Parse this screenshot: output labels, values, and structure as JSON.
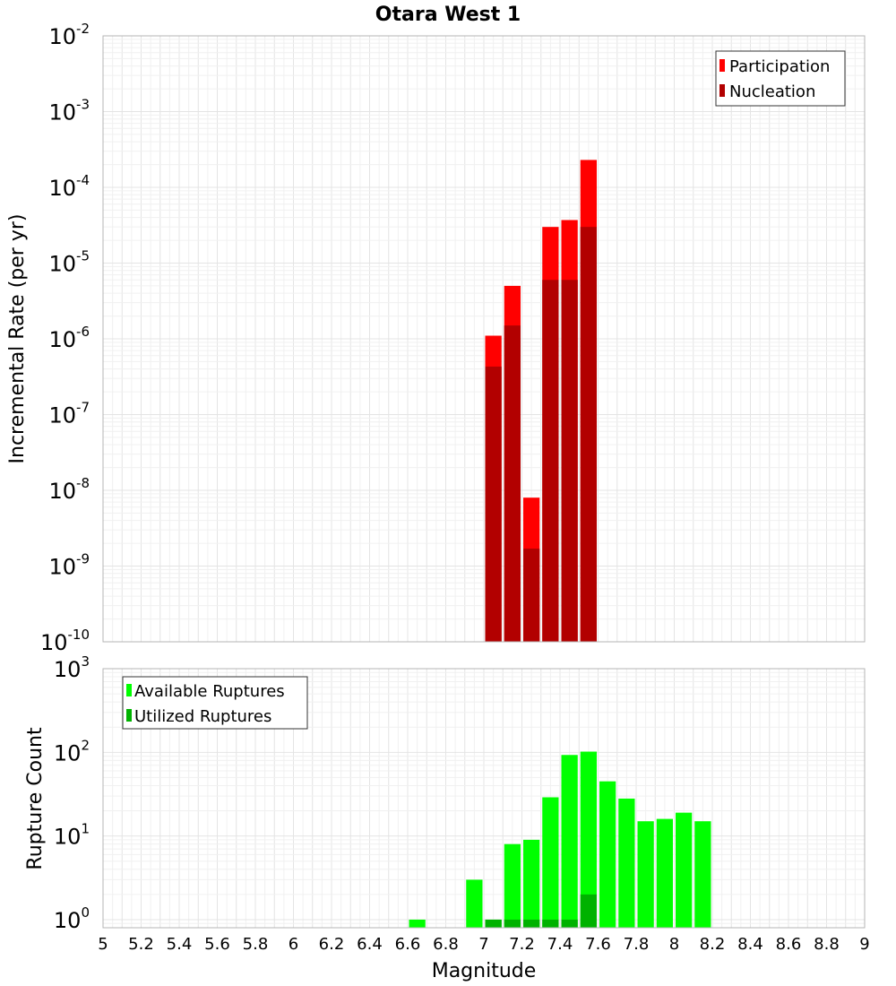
{
  "title": "Otara West 1",
  "colors": {
    "participation": "#ff0000",
    "nucleation": "#b20000",
    "available": "#00ff00",
    "utilized": "#00b200"
  },
  "chart_data": [
    {
      "type": "bar",
      "scale": "log",
      "ylabel": "Incremental Rate (per yr)",
      "ylim": [
        1e-10,
        0.01
      ],
      "xlim": [
        5,
        9
      ],
      "grid": true,
      "legend_position": "top-right",
      "yticks": [
        {
          "base": "10",
          "exp": "-10"
        },
        {
          "base": "10",
          "exp": "-9"
        },
        {
          "base": "10",
          "exp": "-8"
        },
        {
          "base": "10",
          "exp": "-7"
        },
        {
          "base": "10",
          "exp": "-6"
        },
        {
          "base": "10",
          "exp": "-5"
        },
        {
          "base": "10",
          "exp": "-4"
        },
        {
          "base": "10",
          "exp": "-3"
        },
        {
          "base": "10",
          "exp": "-2"
        }
      ],
      "series": [
        {
          "name": "Participation",
          "color": "#ff0000",
          "x": [
            7.05,
            7.15,
            7.25,
            7.35,
            7.45,
            7.55
          ],
          "values": [
            1.1e-06,
            5e-06,
            8e-09,
            3e-05,
            3.7e-05,
            0.00023
          ]
        },
        {
          "name": "Nucleation",
          "color": "#b20000",
          "x": [
            7.05,
            7.15,
            7.25,
            7.35,
            7.45,
            7.55
          ],
          "values": [
            4.3e-07,
            1.5e-06,
            1.7e-09,
            6e-06,
            6e-06,
            3e-05
          ]
        }
      ]
    },
    {
      "type": "bar",
      "scale": "log",
      "ylabel": "Rupture Count",
      "xlabel": "Magnitude",
      "ylim": [
        0.8,
        1000
      ],
      "xlim": [
        5,
        9
      ],
      "grid": true,
      "legend_position": "top-left",
      "yticks": [
        {
          "base": "10",
          "exp": "0",
          "value": 1
        },
        {
          "base": "10",
          "exp": "1",
          "value": 10
        },
        {
          "base": "10",
          "exp": "2",
          "value": 100
        },
        {
          "base": "10",
          "exp": "3",
          "value": 1000
        }
      ],
      "xticks": [
        "5",
        "5.2",
        "5.4",
        "5.6",
        "5.8",
        "6",
        "6.2",
        "6.4",
        "6.6",
        "6.8",
        "7",
        "7.2",
        "7.4",
        "7.6",
        "7.8",
        "8",
        "8.2",
        "8.4",
        "8.6",
        "8.8",
        "9"
      ],
      "series": [
        {
          "name": "Available Ruptures",
          "color": "#00ff00",
          "x": [
            6.65,
            6.95,
            7.05,
            7.15,
            7.25,
            7.35,
            7.45,
            7.55,
            7.65,
            7.75,
            7.85,
            7.95,
            8.05,
            8.15
          ],
          "values": [
            1,
            3,
            1,
            8,
            9,
            29,
            93,
            102,
            45,
            28,
            15,
            16,
            19,
            15
          ]
        },
        {
          "name": "Utilized Ruptures",
          "color": "#00b200",
          "x": [
            7.05,
            7.15,
            7.25,
            7.35,
            7.45,
            7.55
          ],
          "values": [
            1,
            1,
            1,
            1,
            1,
            2
          ]
        }
      ]
    }
  ]
}
